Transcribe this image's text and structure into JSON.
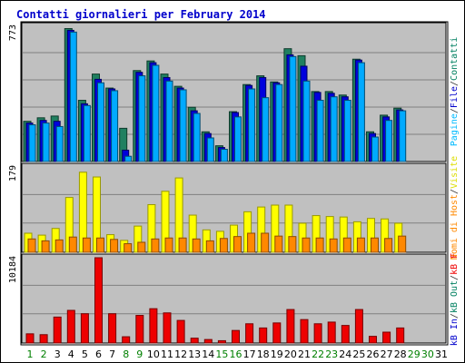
{
  "title": "Contatti giornalieri per February 2014",
  "right_labels": {
    "top": [
      {
        "text": "Pagine",
        "color": "#00bbff"
      },
      {
        "text": "/",
        "color": "#333333"
      },
      {
        "text": "File",
        "color": "#0000cc"
      },
      {
        "text": "/",
        "color": "#333333"
      },
      {
        "text": "Contatti",
        "color": "#008060"
      }
    ],
    "middle": [
      {
        "text": "Nomi di Host",
        "color": "#ff8800"
      },
      {
        "text": "/",
        "color": "#333333"
      },
      {
        "text": "Visite",
        "color": "#dddd00"
      }
    ],
    "bottom": [
      {
        "text": "kB In",
        "color": "#0000cc"
      },
      {
        "text": "/",
        "color": "#333333"
      },
      {
        "text": "kB Out",
        "color": "#008060"
      },
      {
        "text": "/",
        "color": "#333333"
      },
      {
        "text": "kB F",
        "color": "#ee0000"
      }
    ]
  },
  "chart_data": {
    "type": "bar",
    "categories": [
      "1",
      "2",
      "3",
      "4",
      "5",
      "6",
      "7",
      "8",
      "9",
      "10",
      "11",
      "12",
      "13",
      "14",
      "15",
      "16",
      "17",
      "18",
      "19",
      "20",
      "21",
      "22",
      "23",
      "24",
      "25",
      "26",
      "27",
      "28",
      "29",
      "30",
      "31"
    ],
    "weekend_days": [
      "1",
      "2",
      "8",
      "9",
      "15",
      "16",
      "22",
      "23",
      "29",
      "30"
    ],
    "colors": {
      "contatti": "#208060",
      "file": "#0000dd",
      "pagine": "#00aaff",
      "visite": "#ffff00",
      "host": "#ff8800",
      "kbf": "#ee0000",
      "panel_bg": "#c0c0c0",
      "gridline": "#808080",
      "weekend_day": "#008000",
      "weekday_day": "#000000"
    },
    "panels": [
      {
        "id": "top",
        "max_label": "773",
        "ymax": 773,
        "series": [
          {
            "name": "Contatti",
            "values": [
              230,
              250,
              260,
              760,
              350,
              500,
              420,
              190,
              520,
              575,
              500,
              430,
              310,
              170,
              90,
              285,
              440,
              490,
              455,
              645,
              605,
              400,
              400,
              380,
              585,
              170,
              265,
              305,
              0,
              0,
              0
            ]
          },
          {
            "name": "File",
            "values": [
              220,
              235,
              230,
              750,
              330,
              470,
              415,
              65,
              510,
              565,
              480,
              420,
              290,
              160,
              80,
              280,
              435,
              480,
              450,
              610,
              545,
              395,
              390,
              370,
              580,
              160,
              255,
              295,
              0,
              0,
              0
            ]
          },
          {
            "name": "Pagine",
            "values": [
              210,
              220,
              200,
              740,
              320,
              450,
              405,
              30,
              490,
              550,
              460,
              410,
              275,
              135,
              70,
              255,
              415,
              365,
              440,
              600,
              460,
              350,
              370,
              350,
              565,
              140,
              235,
              290,
              0,
              0,
              0
            ]
          }
        ]
      },
      {
        "id": "middle",
        "max_label": "179",
        "ymax": 179,
        "series": [
          {
            "name": "Visite",
            "values": [
              40,
              36,
              50,
              115,
              168,
              158,
              37,
              25,
              55,
              100,
              128,
              156,
              78,
              47,
              44,
              57,
              85,
              95,
              99,
              99,
              61,
              77,
              75,
              74,
              64,
              71,
              70,
              61,
              0,
              0,
              0
            ]
          },
          {
            "name": "Nomi di Host",
            "values": [
              28,
              24,
              26,
              32,
              30,
              30,
              27,
              18,
              21,
              28,
              30,
              30,
              28,
              24,
              29,
              33,
              40,
              40,
              34,
              33,
              30,
              30,
              28,
              30,
              30,
              30,
              29,
              34,
              0,
              0,
              0
            ]
          }
        ]
      },
      {
        "id": "bottom",
        "max_label": "10184",
        "ymax": 10184,
        "series": [
          {
            "name": "kB F",
            "values": [
              1100,
              1000,
              3100,
              3900,
              3500,
              10184,
              3500,
              750,
              3300,
              4100,
              3600,
              2700,
              580,
              420,
              280,
              1500,
              2300,
              1800,
              2400,
              4000,
              2800,
              2300,
              2500,
              2100,
              4000,
              800,
              1300,
              1800,
              0,
              0,
              0
            ]
          }
        ]
      }
    ]
  }
}
